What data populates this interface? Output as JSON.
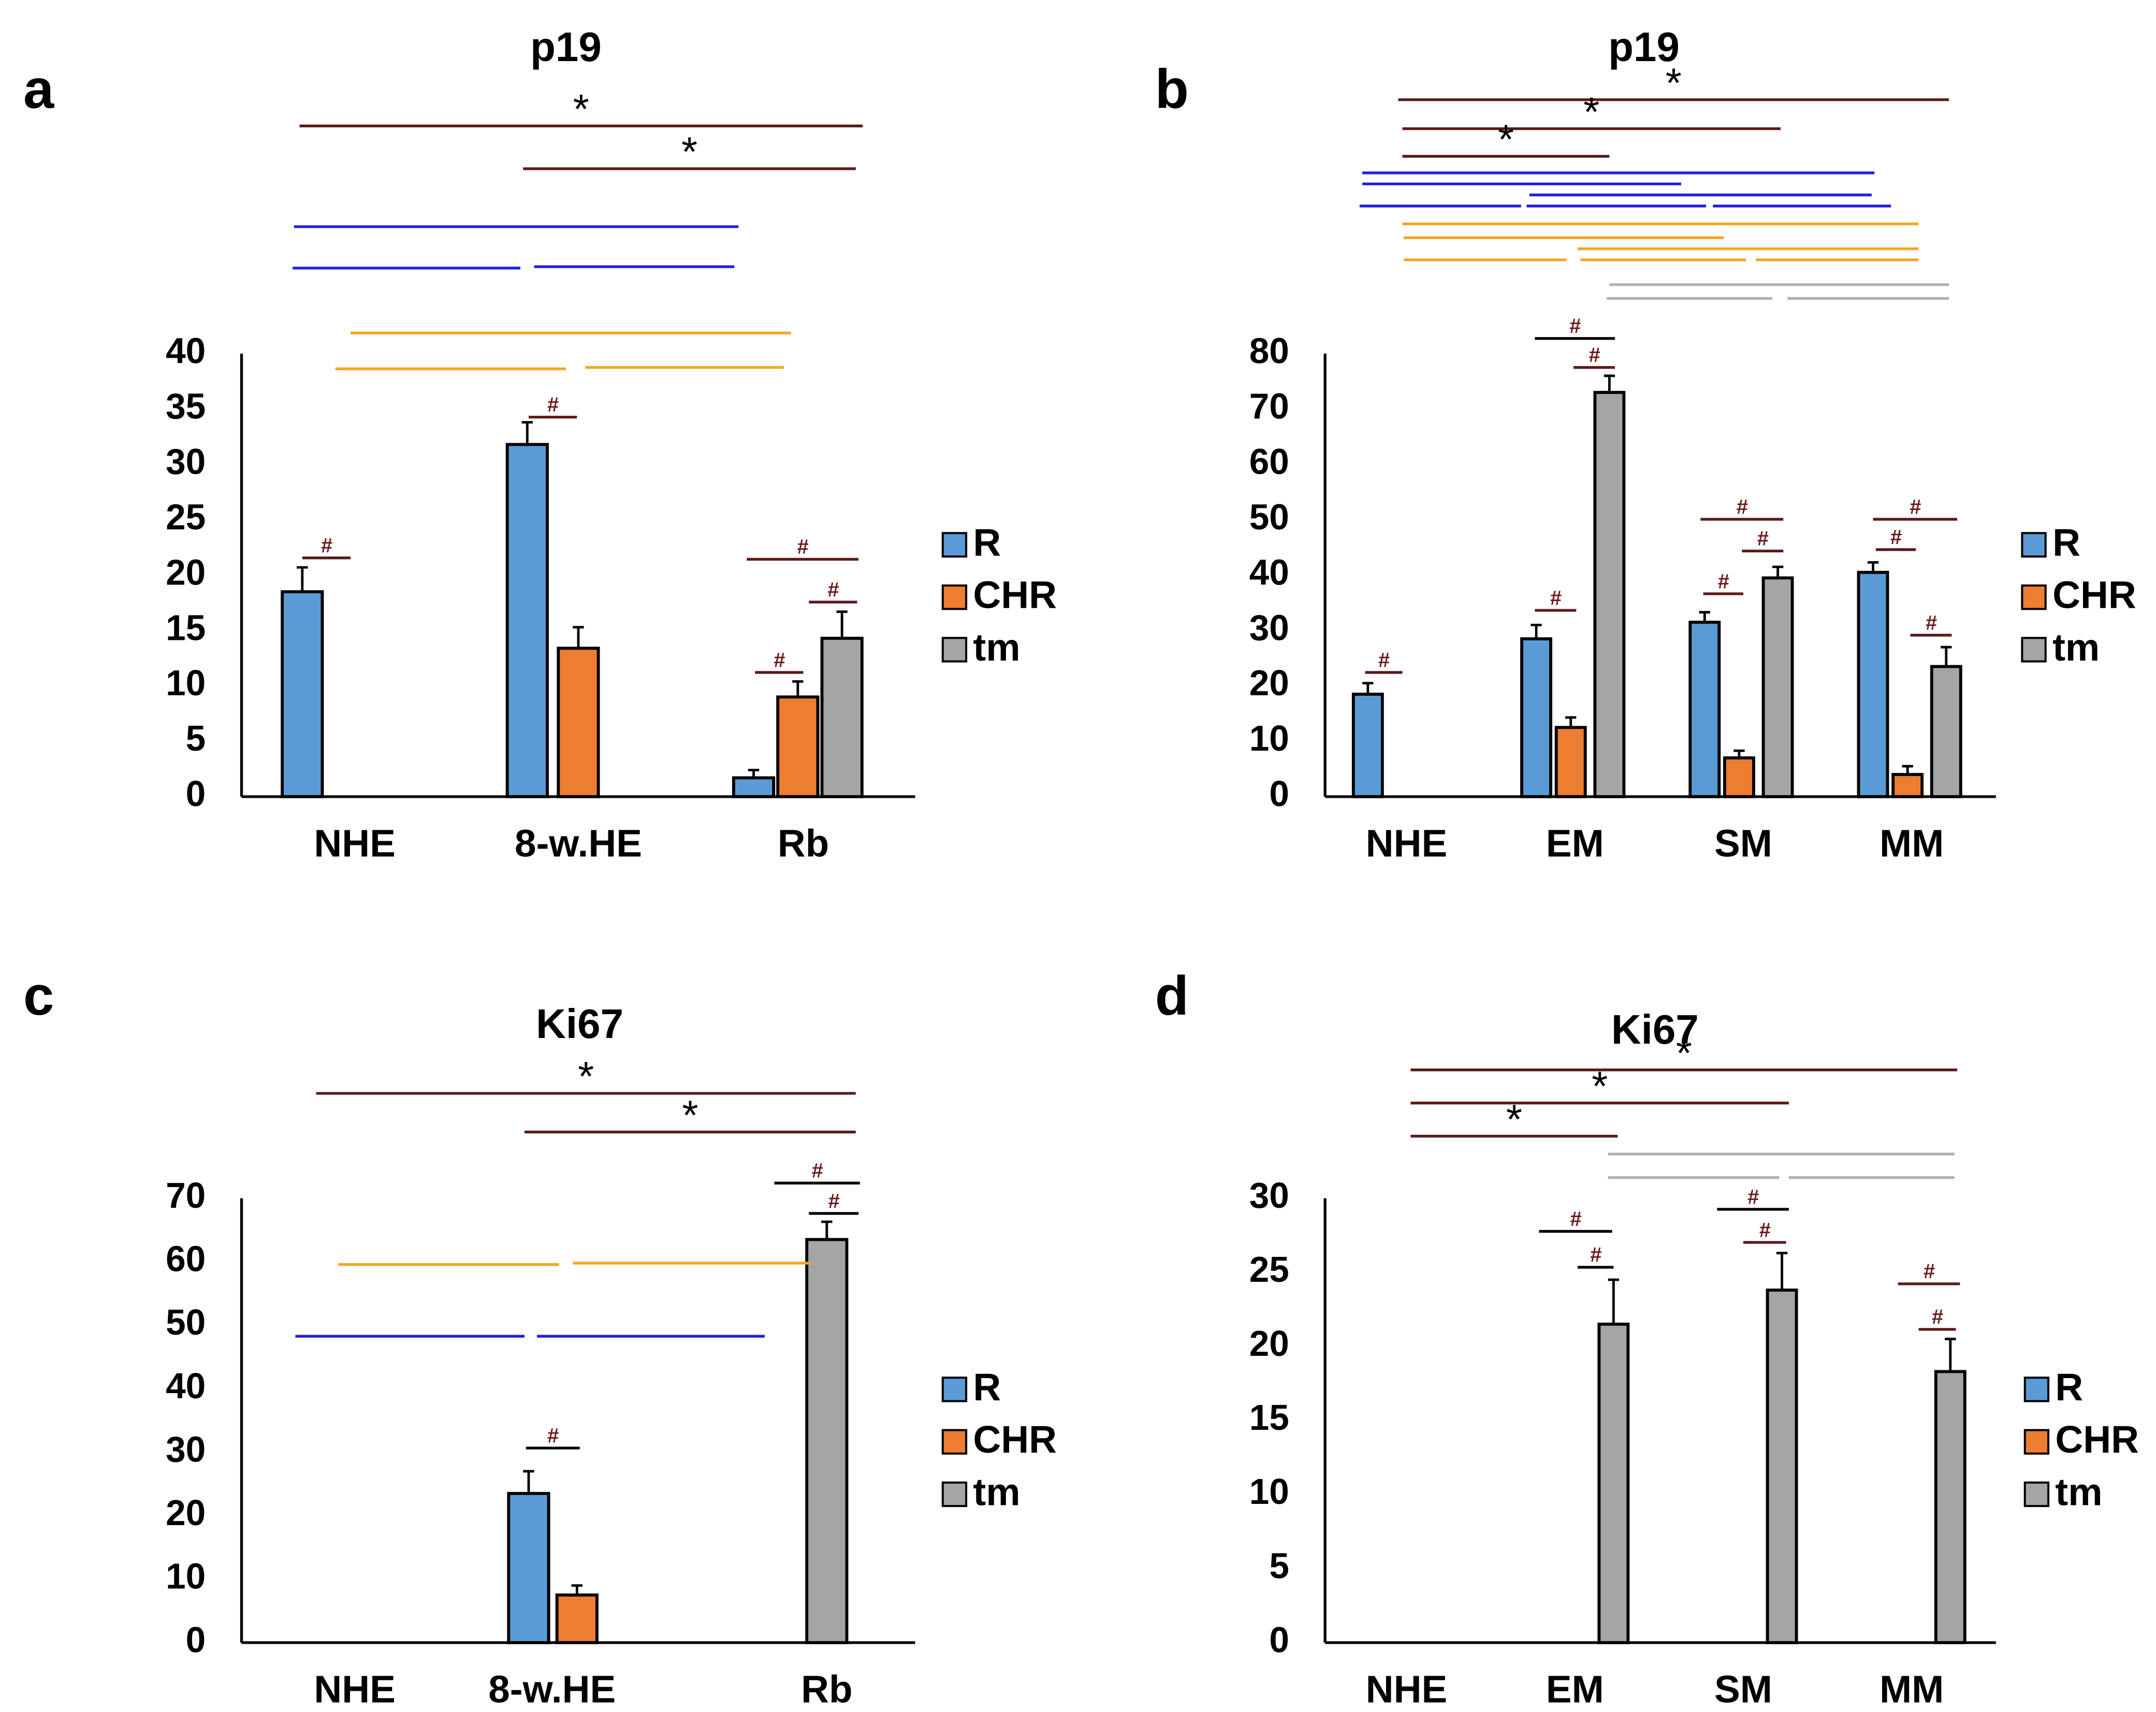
{
  "series_colors": {
    "R": "#5b9bd5",
    "CHR": "#ed7d31",
    "tm": "#a5a5a5"
  },
  "bracket_colors": {
    "maroon": "#5a1a1a",
    "blue": "#1f1fe0",
    "orange": "#f5a623",
    "gray": "#b0b0b0",
    "black": "#000000"
  },
  "chart_data": [
    {
      "panel": "a",
      "type": "bar",
      "title": "p19",
      "categories": [
        "NHE",
        "8-w.HE",
        "Rb"
      ],
      "series": [
        {
          "name": "R",
          "values": [
            18.5,
            31.8,
            1.7
          ],
          "errors": [
            2.2,
            2.0,
            0.7
          ]
        },
        {
          "name": "CHR",
          "values": [
            null,
            13.4,
            9.0
          ],
          "errors": [
            null,
            1.9,
            1.4
          ]
        },
        {
          "name": "tm",
          "values": [
            null,
            null,
            14.3
          ],
          "errors": [
            null,
            null,
            2.4
          ]
        }
      ],
      "ylim": [
        0,
        40
      ],
      "yticks": [
        "0",
        "5",
        "10",
        "15",
        "20",
        "25",
        "30",
        "35",
        "40"
      ],
      "legend": [
        "R",
        "CHR",
        "tm"
      ],
      "hash_label": "#",
      "star_label": "*",
      "legend_position": "right"
    },
    {
      "panel": "b",
      "type": "bar",
      "title": "p19",
      "categories": [
        "NHE",
        "EM",
        "SM",
        "MM"
      ],
      "series": [
        {
          "name": "R",
          "values": [
            18.5,
            28.5,
            31.5,
            40.5
          ],
          "errors": [
            2.0,
            2.5,
            1.8,
            1.8
          ]
        },
        {
          "name": "CHR",
          "values": [
            null,
            12.5,
            7.0,
            4.0
          ],
          "errors": [
            null,
            1.8,
            1.3,
            1.5
          ]
        },
        {
          "name": "tm",
          "values": [
            null,
            73.0,
            39.5,
            23.5
          ],
          "errors": [
            null,
            3.0,
            2.0,
            3.5
          ]
        }
      ],
      "ylim": [
        0,
        80
      ],
      "yticks": [
        "0",
        "10",
        "20",
        "30",
        "40",
        "50",
        "60",
        "70",
        "80"
      ],
      "legend": [
        "R",
        "CHR",
        "tm"
      ],
      "hash_label": "#",
      "star_label": "*",
      "legend_position": "right"
    },
    {
      "panel": "c",
      "type": "bar",
      "title": "Ki67",
      "categories": [
        "NHE",
        "8-w.HE",
        "Rb"
      ],
      "series": [
        {
          "name": "R",
          "values": [
            null,
            23.5,
            null
          ],
          "errors": [
            null,
            3.5,
            null
          ]
        },
        {
          "name": "CHR",
          "values": [
            null,
            7.5,
            null
          ],
          "errors": [
            null,
            1.5,
            null
          ]
        },
        {
          "name": "tm",
          "values": [
            null,
            null,
            63.5
          ],
          "errors": [
            null,
            null,
            2.8
          ]
        }
      ],
      "ylim": [
        0,
        70
      ],
      "yticks": [
        "0",
        "10",
        "20",
        "30",
        "40",
        "50",
        "60",
        "70"
      ],
      "legend": [
        "R",
        "CHR",
        "tm"
      ],
      "hash_label": "#",
      "star_label": "*",
      "legend_position": "right"
    },
    {
      "panel": "d",
      "type": "bar",
      "title": "Ki67",
      "categories": [
        "NHE",
        "EM",
        "SM",
        "MM"
      ],
      "series": [
        {
          "name": "R",
          "values": [
            null,
            null,
            null,
            null
          ],
          "errors": [
            null,
            null,
            null,
            null
          ]
        },
        {
          "name": "CHR",
          "values": [
            null,
            null,
            null,
            null
          ],
          "errors": [
            null,
            null,
            null,
            null
          ]
        },
        {
          "name": "tm",
          "values": [
            null,
            21.5,
            23.8,
            18.3
          ],
          "errors": [
            null,
            3.0,
            2.5,
            2.2
          ]
        }
      ],
      "ylim": [
        0,
        30
      ],
      "yticks": [
        "0",
        "5",
        "10",
        "15",
        "20",
        "25",
        "30"
      ],
      "legend": [
        "R",
        "CHR",
        "tm"
      ],
      "hash_label": "#",
      "star_label": "*",
      "legend_position": "right"
    }
  ]
}
